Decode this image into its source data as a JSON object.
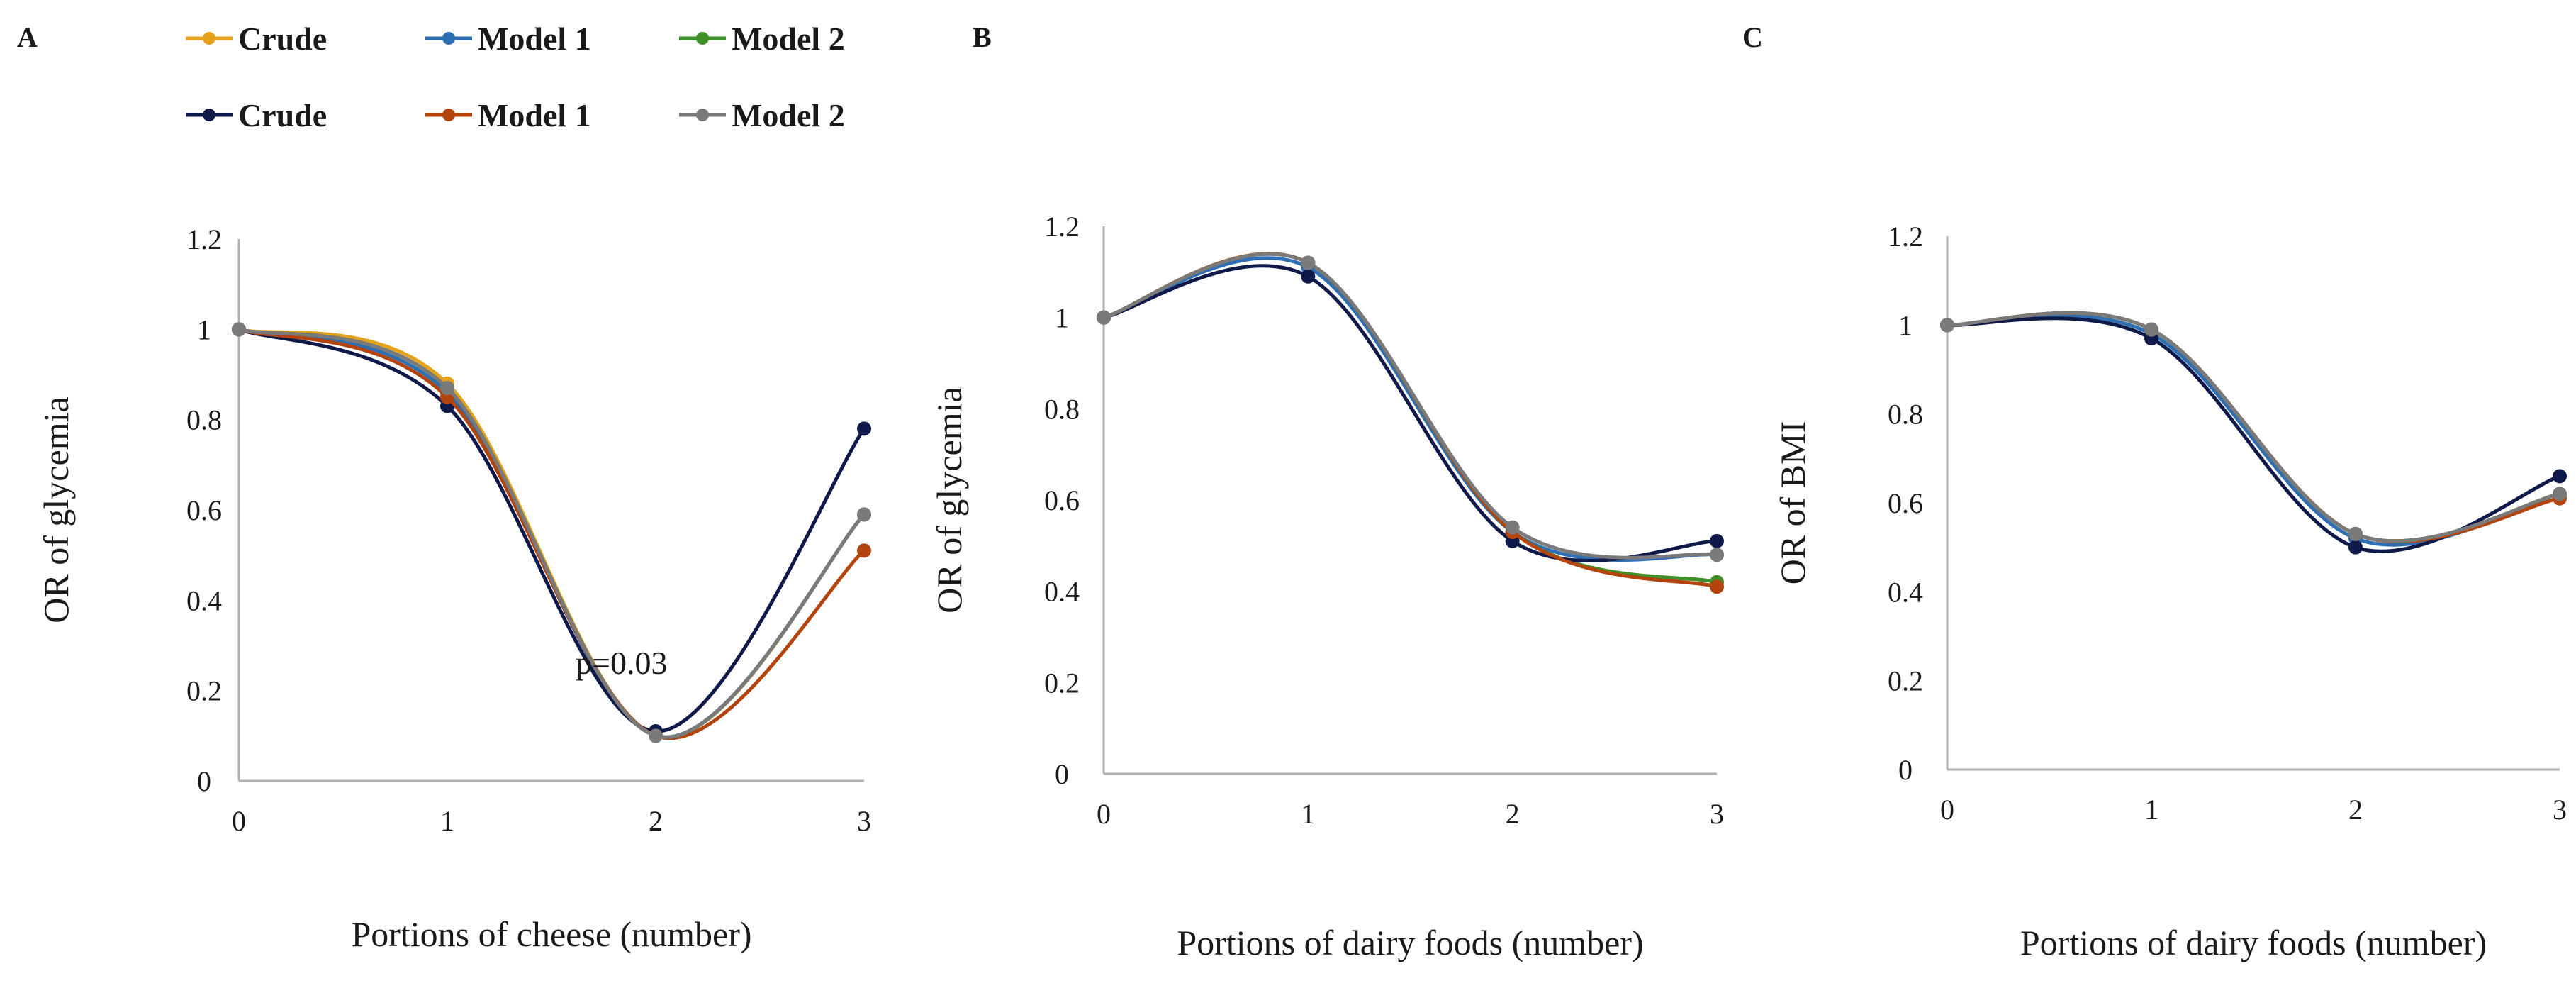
{
  "legend": {
    "row1": [
      {
        "label": "Crude",
        "color": "#e3a21a"
      },
      {
        "label": "Model 1",
        "color": "#2e6fb3"
      },
      {
        "label": "Model 2",
        "color": "#3f8f2a"
      }
    ],
    "row2": [
      {
        "label": "Crude",
        "color": "#101a4a"
      },
      {
        "label": "Model 1",
        "color": "#b3440e"
      },
      {
        "label": "Model 2",
        "color": "#7a7a7a"
      }
    ]
  },
  "chart_data": [
    {
      "panel": "A",
      "type": "line",
      "xlabel": "Portions of cheese (number)",
      "ylabel": "OR of glycemia",
      "x": [
        0,
        1,
        2,
        3
      ],
      "x_ticks": [
        "0",
        "1",
        "2",
        "3"
      ],
      "ylim": [
        0,
        1.2
      ],
      "y_ticks": [
        "0",
        "0.2",
        "0.4",
        "0.6",
        "0.8",
        "1",
        "1.2"
      ],
      "annotation": "p=0.03",
      "series": [
        {
          "name": "Crude",
          "color": "#e3a21a",
          "values": [
            1,
            0.88,
            0.1,
            0.59
          ]
        },
        {
          "name": "Model 1",
          "color": "#2e6fb3",
          "values": [
            1,
            0.86,
            0.1,
            0.59
          ]
        },
        {
          "name": "Model 2",
          "color": "#3f8f2a",
          "values": [
            1,
            0.87,
            0.1,
            0.59
          ]
        },
        {
          "name": "Crude",
          "color": "#101a4a",
          "values": [
            1,
            0.83,
            0.11,
            0.78
          ]
        },
        {
          "name": "Model 1",
          "color": "#b3440e",
          "values": [
            1,
            0.85,
            0.1,
            0.51
          ]
        },
        {
          "name": "Model 2",
          "color": "#7a7a7a",
          "values": [
            1,
            0.87,
            0.1,
            0.59
          ]
        }
      ]
    },
    {
      "panel": "B",
      "type": "line",
      "xlabel": "Portions of dairy foods (number)",
      "ylabel": "OR of glycemia",
      "x": [
        0,
        1,
        2,
        3
      ],
      "x_ticks": [
        "0",
        "1",
        "2",
        "3"
      ],
      "ylim": [
        0,
        1.2
      ],
      "y_ticks": [
        "0",
        "0.2",
        "0.4",
        "0.6",
        "0.8",
        "1",
        "1.2"
      ],
      "series": [
        {
          "name": "Crude",
          "color": "#e3a21a",
          "values": [
            1,
            1.12,
            0.53,
            0.42
          ]
        },
        {
          "name": "Model 1",
          "color": "#2e6fb3",
          "values": [
            1,
            1.11,
            0.53,
            0.48
          ]
        },
        {
          "name": "Model 2",
          "color": "#3f8f2a",
          "values": [
            1,
            1.12,
            0.53,
            0.42
          ]
        },
        {
          "name": "Crude",
          "color": "#101a4a",
          "values": [
            1,
            1.09,
            0.51,
            0.51
          ]
        },
        {
          "name": "Model 1",
          "color": "#b3440e",
          "values": [
            1,
            1.12,
            0.53,
            0.41
          ]
        },
        {
          "name": "Model 2",
          "color": "#7a7a7a",
          "values": [
            1,
            1.12,
            0.54,
            0.48
          ]
        }
      ]
    },
    {
      "panel": "C",
      "type": "line",
      "xlabel": "Portions of dairy foods (number)",
      "ylabel": "OR of BMI",
      "x": [
        0,
        1,
        2,
        3
      ],
      "x_ticks": [
        "0",
        "1",
        "2",
        "3"
      ],
      "ylim": [
        0,
        1.2
      ],
      "y_ticks": [
        "0",
        "0.2",
        "0.4",
        "0.6",
        "0.8",
        "1",
        "1.2"
      ],
      "series": [
        {
          "name": "Crude",
          "color": "#e3a21a",
          "values": [
            1,
            0.99,
            0.53,
            0.62
          ]
        },
        {
          "name": "Model 1",
          "color": "#2e6fb3",
          "values": [
            1,
            0.98,
            0.52,
            0.62
          ]
        },
        {
          "name": "Model 2",
          "color": "#3f8f2a",
          "values": [
            1,
            0.99,
            0.53,
            0.62
          ]
        },
        {
          "name": "Crude",
          "color": "#101a4a",
          "values": [
            1,
            0.97,
            0.5,
            0.66
          ]
        },
        {
          "name": "Model 1",
          "color": "#b3440e",
          "values": [
            1,
            0.99,
            0.53,
            0.61
          ]
        },
        {
          "name": "Model 2",
          "color": "#7a7a7a",
          "values": [
            1,
            0.99,
            0.53,
            0.62
          ]
        }
      ]
    }
  ]
}
